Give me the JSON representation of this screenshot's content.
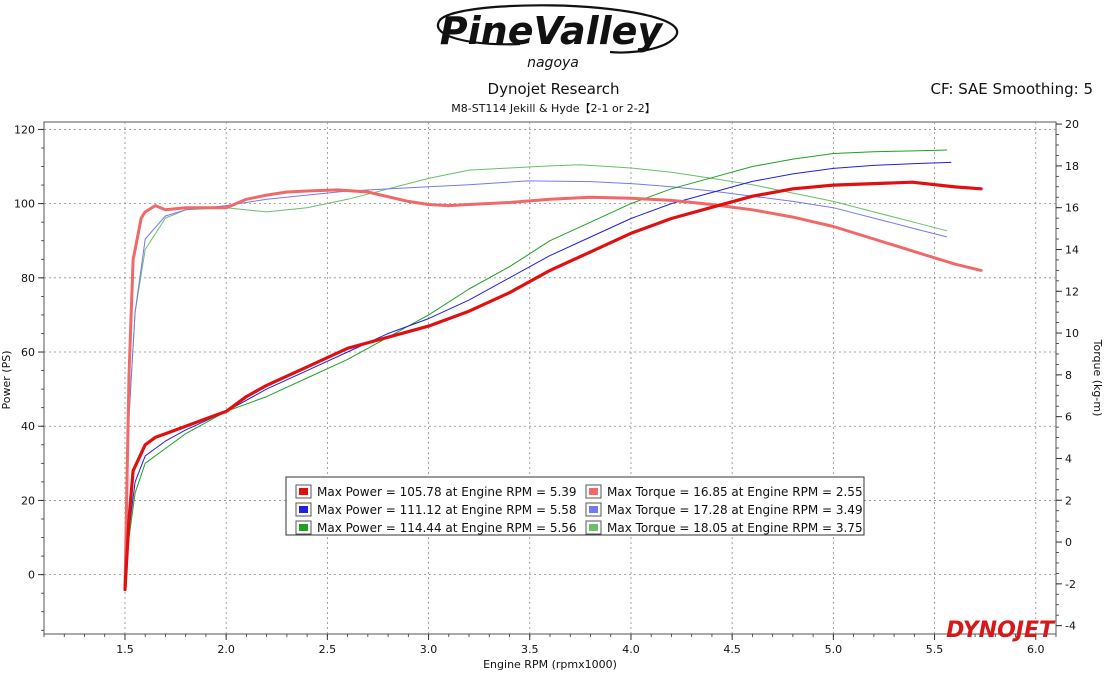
{
  "logo": {
    "main": "PineValley",
    "sub": "nagoya"
  },
  "brand": "DYNOJET",
  "chart_data": {
    "type": "line",
    "title": "Dynojet Research",
    "subtitle": "M8-ST114  Jekill & Hyde【2-1 or 2-2】",
    "correction": "CF: SAE Smoothing: 5",
    "xlabel": "Engine RPM (rpmx1000)",
    "ylabel": "Power (PS)",
    "y2label": "Torque (kg-m)",
    "xlim": [
      1.1,
      6.1
    ],
    "ylim": [
      -16,
      122
    ],
    "y2lim": [
      -4.4,
      20.1
    ],
    "xticks": [
      1.5,
      2.0,
      2.5,
      3.0,
      3.5,
      4.0,
      4.5,
      5.0,
      5.5,
      6.0
    ],
    "xtick_labels": [
      "1.5",
      "2.0",
      "2.5",
      "3.0",
      "3.5",
      "4.0",
      "4.5",
      "5.0",
      "5.5",
      "6.0"
    ],
    "yticks": [
      0,
      20,
      40,
      60,
      80,
      100,
      120
    ],
    "ytick_labels": [
      "0",
      "20",
      "40",
      "60",
      "80",
      "100",
      "120"
    ],
    "y2ticks": [
      -4,
      -2,
      0,
      2,
      4,
      6,
      8,
      10,
      12,
      14,
      16,
      18,
      20
    ],
    "y2tick_labels": [
      "-4",
      "-2",
      "0",
      "2",
      "4",
      "6",
      "8",
      "10",
      "12",
      "14",
      "16",
      "18",
      "20"
    ],
    "grid": true,
    "series": [
      {
        "name": "Max Power = 105.78 at Engine RPM = 5.39",
        "kind": "power",
        "axis": "left",
        "color": "#e01010",
        "width": 3.2,
        "x": [
          1.5,
          1.52,
          1.54,
          1.6,
          1.65,
          1.7,
          1.8,
          1.9,
          2.0,
          2.1,
          2.2,
          2.4,
          2.6,
          2.8,
          3.0,
          3.2,
          3.4,
          3.6,
          3.8,
          4.0,
          4.2,
          4.4,
          4.6,
          4.8,
          5.0,
          5.2,
          5.39,
          5.6,
          5.73
        ],
        "y": [
          -4,
          15,
          28,
          35,
          37,
          38,
          40,
          42,
          44,
          48,
          51,
          56,
          61,
          64,
          67,
          71,
          76,
          82,
          87,
          92,
          96,
          99,
          102,
          104,
          105,
          105.4,
          105.78,
          104.5,
          104
        ]
      },
      {
        "name": "Max Power = 111.12 at Engine RPM = 5.58",
        "kind": "power",
        "axis": "left",
        "color": "#2020e0",
        "width": 1.0,
        "x": [
          1.5,
          1.52,
          1.55,
          1.6,
          1.7,
          1.8,
          2.0,
          2.2,
          2.4,
          2.6,
          2.8,
          3.0,
          3.2,
          3.4,
          3.6,
          3.8,
          4.0,
          4.2,
          4.4,
          4.6,
          4.8,
          5.0,
          5.2,
          5.4,
          5.58
        ],
        "y": [
          -4,
          12,
          25,
          32,
          36,
          39,
          44,
          50,
          55,
          60,
          65,
          69,
          74,
          80,
          86,
          91,
          96,
          100,
          103,
          106,
          108,
          109.5,
          110.3,
          110.8,
          111.12
        ]
      },
      {
        "name": "Max Power = 114.44 at Engine RPM = 5.56",
        "kind": "power",
        "axis": "left",
        "color": "#20a020",
        "width": 1.0,
        "x": [
          1.5,
          1.52,
          1.55,
          1.6,
          1.7,
          1.8,
          2.0,
          2.2,
          2.4,
          2.6,
          2.8,
          3.0,
          3.2,
          3.4,
          3.6,
          3.8,
          4.0,
          4.2,
          4.4,
          4.6,
          4.8,
          5.0,
          5.2,
          5.4,
          5.56
        ],
        "y": [
          -4,
          10,
          22,
          30,
          34,
          38,
          44,
          48,
          53,
          58,
          64,
          70,
          77,
          83,
          90,
          95,
          100,
          104,
          107,
          110,
          112,
          113.5,
          114,
          114.2,
          114.44
        ]
      },
      {
        "name": "Max Torque = 16.85 at Engine RPM = 2.55",
        "kind": "torque",
        "axis": "right",
        "color": "#f06868",
        "width": 3.0,
        "x": [
          1.5,
          1.52,
          1.54,
          1.58,
          1.6,
          1.65,
          1.7,
          1.8,
          1.9,
          2.0,
          2.1,
          2.2,
          2.3,
          2.4,
          2.55,
          2.7,
          2.9,
          3.0,
          3.1,
          3.2,
          3.4,
          3.6,
          3.8,
          4.0,
          4.2,
          4.4,
          4.6,
          4.8,
          5.0,
          5.2,
          5.4,
          5.6,
          5.73
        ],
        "y": [
          -2.2,
          8,
          13.5,
          15.5,
          15.8,
          16.1,
          15.9,
          16.0,
          16.0,
          16.0,
          16.4,
          16.6,
          16.75,
          16.8,
          16.85,
          16.75,
          16.3,
          16.15,
          16.1,
          16.15,
          16.25,
          16.4,
          16.5,
          16.45,
          16.35,
          16.15,
          15.9,
          15.55,
          15.1,
          14.5,
          13.9,
          13.3,
          13.0
        ]
      },
      {
        "name": "Max Torque = 17.28 at Engine RPM = 3.49",
        "kind": "torque",
        "axis": "right",
        "color": "#7878f0",
        "width": 1.0,
        "x": [
          1.5,
          1.52,
          1.55,
          1.6,
          1.7,
          1.8,
          2.0,
          2.2,
          2.4,
          2.6,
          2.8,
          3.0,
          3.2,
          3.49,
          3.8,
          4.0,
          4.2,
          4.4,
          4.6,
          4.8,
          5.0,
          5.2,
          5.4,
          5.56
        ],
        "y": [
          -2.0,
          6,
          11,
          14.5,
          15.6,
          15.9,
          16.1,
          16.4,
          16.6,
          16.8,
          16.9,
          17.0,
          17.1,
          17.28,
          17.25,
          17.15,
          17.0,
          16.8,
          16.55,
          16.3,
          16.0,
          15.5,
          15.0,
          14.6
        ]
      },
      {
        "name": "Max Torque = 18.05 at Engine RPM = 3.75",
        "kind": "torque",
        "axis": "right",
        "color": "#68c068",
        "width": 1.0,
        "x": [
          1.5,
          1.52,
          1.55,
          1.6,
          1.7,
          1.8,
          2.0,
          2.2,
          2.4,
          2.6,
          2.8,
          3.0,
          3.2,
          3.4,
          3.6,
          3.75,
          4.0,
          4.2,
          4.4,
          4.6,
          4.8,
          5.0,
          5.2,
          5.4,
          5.56
        ],
        "y": [
          -2.0,
          6,
          11,
          14,
          15.5,
          15.9,
          16.0,
          15.8,
          16.0,
          16.4,
          16.9,
          17.4,
          17.8,
          17.9,
          18.0,
          18.05,
          17.9,
          17.7,
          17.4,
          17.1,
          16.7,
          16.3,
          15.8,
          15.3,
          14.9
        ]
      }
    ],
    "legend_position": "bottom-center"
  }
}
